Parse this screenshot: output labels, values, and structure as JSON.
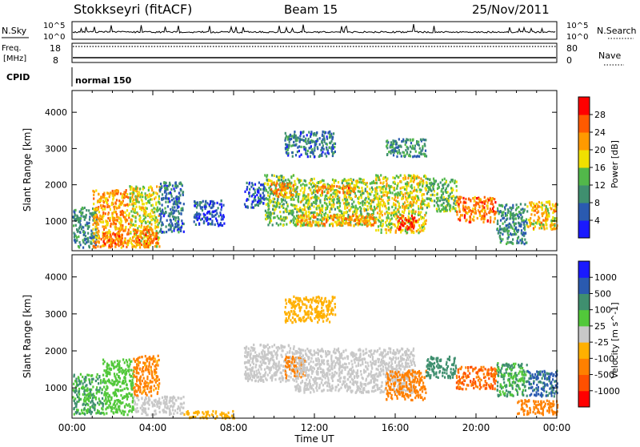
{
  "header": {
    "station": "Stokkseyri (fitACF)",
    "beam": "Beam 15",
    "date": "25/Nov/2011"
  },
  "status_panels": {
    "nsky": {
      "label": "N.Sky",
      "ticks": [
        "10^5",
        "10^0"
      ]
    },
    "nsearch": {
      "label": "N.Search",
      "ticks": [
        "10^5",
        "10^0"
      ]
    },
    "freq": {
      "label_line1": "Freq.",
      "label_line2": "[MHz]",
      "ticks": [
        "18",
        "8"
      ]
    },
    "nave": {
      "label": "Nave",
      "ticks": [
        "80",
        "0"
      ]
    },
    "cpid": {
      "label": "CPID",
      "mode": "normal 150"
    }
  },
  "colors": {
    "power": [
      "#1a1aff",
      "#2a5ab0",
      "#3f8f6f",
      "#52b84a",
      "#f0e000",
      "#ff9a00",
      "#ff5a00",
      "#ff0000"
    ],
    "velocity": [
      "#1a1aff",
      "#2a5ab0",
      "#3f8f6f",
      "#52c83a",
      "#c8c8c8",
      "#ffb000",
      "#ff8000",
      "#ff5000",
      "#ff0000"
    ]
  },
  "chart_data": [
    {
      "type": "heatmap",
      "title": "",
      "xlabel": "Time UT",
      "ylabel": "Slant Range [km]",
      "x_ticks": [
        "00:00",
        "04:00",
        "08:00",
        "12:00",
        "16:00",
        "20:00",
        "00:00"
      ],
      "xlim_hours": [
        0,
        24
      ],
      "ylim": [
        180,
        4600
      ],
      "y_ticks": [
        1000,
        2000,
        3000,
        4000
      ],
      "colorbar": {
        "label": "Power [dB]",
        "ticks": [
          "28",
          "24",
          "20",
          "16",
          "12",
          "8",
          "4"
        ],
        "range": [
          0,
          32
        ]
      },
      "regions": [
        {
          "t0": 0.0,
          "t1": 1.2,
          "r0": 300,
          "r1": 1400,
          "value": 10
        },
        {
          "t0": 1.0,
          "t1": 2.8,
          "r0": 300,
          "r1": 1900,
          "value": 22
        },
        {
          "t0": 1.5,
          "t1": 2.5,
          "r0": 300,
          "r1": 700,
          "value": 26
        },
        {
          "t0": 2.8,
          "t1": 4.3,
          "r0": 300,
          "r1": 2000,
          "value": 18
        },
        {
          "t0": 3.0,
          "t1": 4.2,
          "r0": 300,
          "r1": 800,
          "value": 24
        },
        {
          "t0": 4.3,
          "t1": 5.5,
          "r0": 700,
          "r1": 2100,
          "value": 8
        },
        {
          "t0": 6.0,
          "t1": 7.5,
          "r0": 900,
          "r1": 1600,
          "value": 5
        },
        {
          "t0": 8.5,
          "t1": 9.5,
          "r0": 1400,
          "r1": 2100,
          "value": 6
        },
        {
          "t0": 9.5,
          "t1": 11.0,
          "r0": 900,
          "r1": 2300,
          "value": 14
        },
        {
          "t0": 9.8,
          "t1": 11.0,
          "r0": 1700,
          "r1": 2100,
          "value": 22
        },
        {
          "t0": 11.0,
          "t1": 15.0,
          "r0": 900,
          "r1": 2200,
          "value": 16
        },
        {
          "t0": 11.0,
          "t1": 15.0,
          "r0": 900,
          "r1": 1200,
          "value": 22
        },
        {
          "t0": 12.0,
          "t1": 14.0,
          "r0": 1800,
          "r1": 2000,
          "value": 24
        },
        {
          "t0": 15.0,
          "t1": 17.5,
          "r0": 700,
          "r1": 2300,
          "value": 18
        },
        {
          "t0": 16.0,
          "t1": 17.0,
          "r0": 800,
          "r1": 1200,
          "value": 28
        },
        {
          "t0": 17.5,
          "t1": 19.0,
          "r0": 1300,
          "r1": 2200,
          "value": 14
        },
        {
          "t0": 19.0,
          "t1": 21.0,
          "r0": 1000,
          "r1": 1700,
          "value": 24
        },
        {
          "t0": 21.0,
          "t1": 22.5,
          "r0": 400,
          "r1": 1500,
          "value": 10
        },
        {
          "t0": 22.5,
          "t1": 24.0,
          "r0": 800,
          "r1": 1600,
          "value": 20
        },
        {
          "t0": 10.5,
          "t1": 13.0,
          "r0": 2800,
          "r1": 3500,
          "value": 8
        },
        {
          "t0": 15.5,
          "t1": 17.5,
          "r0": 2800,
          "r1": 3300,
          "value": 10
        }
      ]
    },
    {
      "type": "heatmap",
      "title": "",
      "xlabel": "Time UT",
      "ylabel": "Slant Range [km]",
      "x_ticks": [
        "00:00",
        "04:00",
        "08:00",
        "12:00",
        "16:00",
        "20:00",
        "00:00"
      ],
      "xlim_hours": [
        0,
        24
      ],
      "ylim": [
        180,
        4600
      ],
      "y_ticks": [
        1000,
        2000,
        3000,
        4000
      ],
      "colorbar": {
        "label": "Velocity [m s^-1]",
        "ticks": [
          "1000",
          "500",
          "100",
          "25",
          "-25",
          "-100",
          "-500",
          "-1000"
        ],
        "range": [
          -1200,
          1200
        ]
      },
      "regions": [
        {
          "t0": 0.0,
          "t1": 1.5,
          "r0": 300,
          "r1": 1400,
          "value": 100
        },
        {
          "t0": 1.5,
          "t1": 3.0,
          "r0": 300,
          "r1": 1800,
          "value": 60
        },
        {
          "t0": 3.0,
          "t1": 4.3,
          "r0": 800,
          "r1": 1900,
          "value": -150
        },
        {
          "t0": 3.0,
          "t1": 5.5,
          "r0": 300,
          "r1": 800,
          "value": 0
        },
        {
          "t0": 5.5,
          "t1": 8.0,
          "r0": 200,
          "r1": 400,
          "value": -60
        },
        {
          "t0": 8.5,
          "t1": 11.0,
          "r0": 1200,
          "r1": 2200,
          "value": 0
        },
        {
          "t0": 10.5,
          "t1": 11.5,
          "r0": 1300,
          "r1": 1900,
          "value": -300
        },
        {
          "t0": 11.0,
          "t1": 17.0,
          "r0": 900,
          "r1": 2100,
          "value": 0
        },
        {
          "t0": 15.5,
          "t1": 17.5,
          "r0": 700,
          "r1": 1500,
          "value": -250
        },
        {
          "t0": 17.5,
          "t1": 19.0,
          "r0": 1300,
          "r1": 1900,
          "value": 300
        },
        {
          "t0": 19.0,
          "t1": 21.0,
          "r0": 1000,
          "r1": 1600,
          "value": -500
        },
        {
          "t0": 21.0,
          "t1": 22.5,
          "r0": 800,
          "r1": 1700,
          "value": 100
        },
        {
          "t0": 22.5,
          "t1": 24.0,
          "r0": 800,
          "r1": 1500,
          "value": 600
        },
        {
          "t0": 22.0,
          "t1": 24.0,
          "r0": 300,
          "r1": 700,
          "value": -200
        },
        {
          "t0": 10.5,
          "t1": 13.0,
          "r0": 2800,
          "r1": 3500,
          "value": -60
        }
      ]
    }
  ]
}
